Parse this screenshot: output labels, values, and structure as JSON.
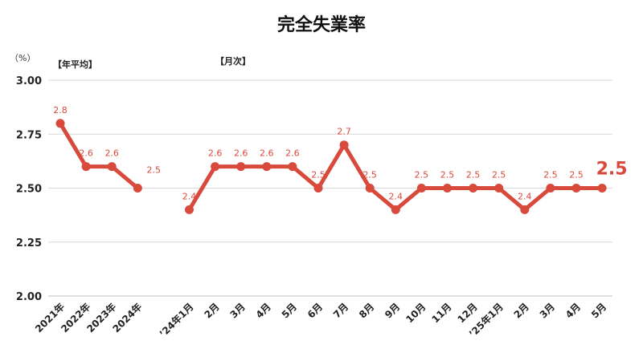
{
  "chart_data": {
    "type": "line",
    "title": "完全失業率",
    "unit": "（%）",
    "sections": [
      "【年平均】",
      "【月次】"
    ],
    "ylim": [
      2.0,
      3.0
    ],
    "yticks": [
      "3.00",
      "2.75",
      "2.50",
      "2.25",
      "2.00"
    ],
    "grid": true,
    "color": "#d84a3c",
    "categories": [
      "2021年",
      "2022年",
      "2023年",
      "2024年",
      "",
      "’24年1月",
      "2月",
      "3月",
      "4月",
      "5月",
      "6月",
      "7月",
      "8月",
      "9月",
      "10月",
      "11月",
      "12月",
      "’25年1月",
      "2月",
      "3月",
      "4月",
      "5月"
    ],
    "annual": {
      "values": [
        2.8,
        2.6,
        2.6,
        2.5
      ],
      "labels": [
        "2.8",
        "2.6",
        "2.6",
        "2.5"
      ]
    },
    "monthly": {
      "values": [
        2.4,
        2.6,
        2.6,
        2.6,
        2.6,
        2.5,
        2.7,
        2.5,
        2.4,
        2.5,
        2.5,
        2.5,
        2.5,
        2.4,
        2.5,
        2.5,
        2.5
      ],
      "labels": [
        "2.4",
        "2.6",
        "2.6",
        "2.6",
        "2.6",
        "2.5",
        "2.7",
        "2.5",
        "2.4",
        "2.5",
        "2.5",
        "2.5",
        "2.5",
        "2.4",
        "2.5",
        "2.5",
        "2.5"
      ]
    }
  }
}
